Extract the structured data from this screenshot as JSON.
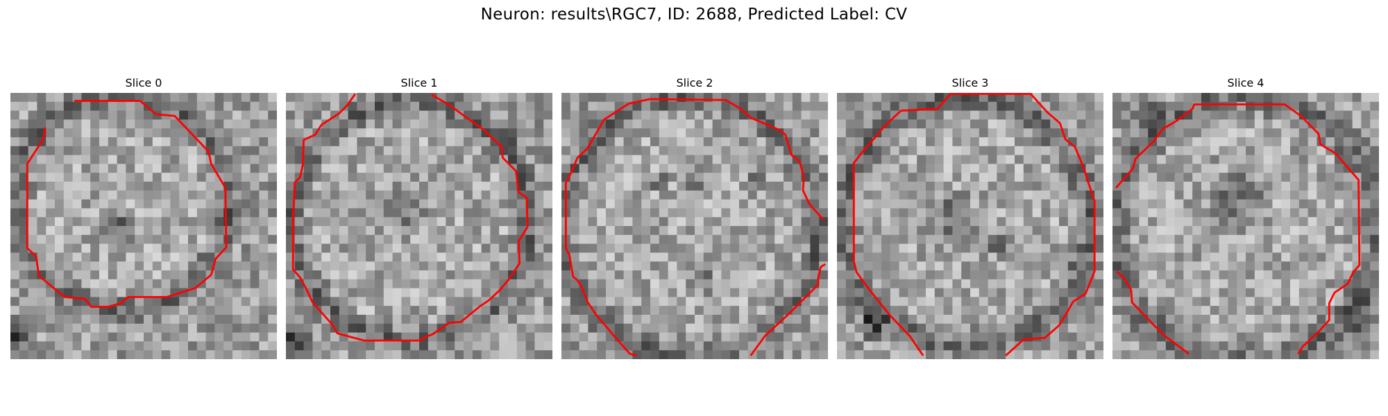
{
  "figure": {
    "title": "Neuron: results\\RGC7, ID: 2688, Predicted Label: CV",
    "contour_color": "#ff0000",
    "colormap": "gray"
  },
  "slices": [
    {
      "title": "Slice 0"
    },
    {
      "title": "Slice 1"
    },
    {
      "title": "Slice 2"
    },
    {
      "title": "Slice 3"
    },
    {
      "title": "Slice 4"
    }
  ]
}
